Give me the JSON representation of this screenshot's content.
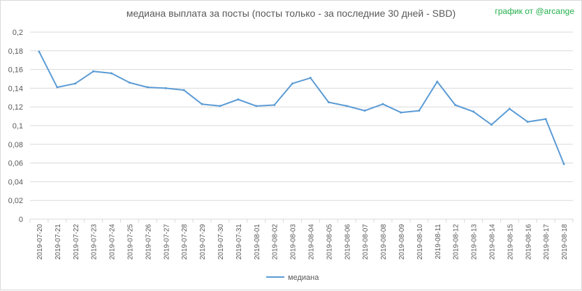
{
  "chart_data": {
    "type": "line",
    "title": "медиана выплата за посты  (посты только - за последние 30 дней - SBD)",
    "credit": "график от @arcange",
    "categories": [
      "2019-07-20",
      "2019-07-21",
      "2019-07-22",
      "2019-07-23",
      "2019-07-24",
      "2019-07-25",
      "2019-07-26",
      "2019-07-27",
      "2019-07-28",
      "2019-07-29",
      "2019-07-30",
      "2019-07-31",
      "2019-08-01",
      "2019-08-02",
      "2019-08-03",
      "2019-08-04",
      "2019-08-05",
      "2019-08-06",
      "2019-08-07",
      "2019-08-08",
      "2019-08-09",
      "2019-08-10",
      "2019-08-11",
      "2019-08-12",
      "2019-08-13",
      "2019-08-14",
      "2019-08-15",
      "2019-08-16",
      "2019-08-17",
      "2019-08-18"
    ],
    "series": [
      {
        "name": "медиана",
        "color": "#5b9bd5",
        "values": [
          0.179,
          0.141,
          0.145,
          0.158,
          0.156,
          0.146,
          0.141,
          0.14,
          0.138,
          0.123,
          0.121,
          0.128,
          0.121,
          0.122,
          0.145,
          0.151,
          0.125,
          0.121,
          0.116,
          0.123,
          0.114,
          0.116,
          0.147,
          0.122,
          0.115,
          0.101,
          0.118,
          0.104,
          0.107,
          0.059
        ]
      }
    ],
    "ylim": [
      0,
      0.2
    ],
    "yticks": [
      0,
      0.02,
      0.04,
      0.06,
      0.08,
      0.1,
      0.12,
      0.14,
      0.16,
      0.18,
      0.2
    ],
    "ytick_labels": [
      "0",
      "0,02",
      "0,04",
      "0,06",
      "0,08",
      "0,1",
      "0,12",
      "0,14",
      "0,16",
      "0,18",
      "0,2"
    ],
    "grid": true,
    "legend_position": "bottom",
    "gridline_color": "#d9d9d9",
    "axis_text_color": "#595959"
  }
}
